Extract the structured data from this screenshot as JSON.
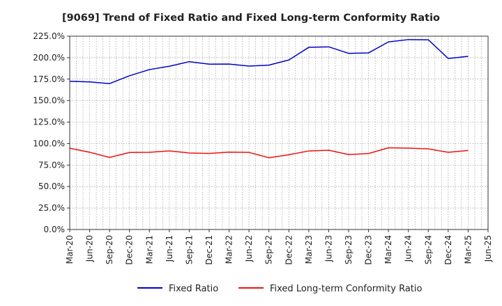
{
  "chart_data": {
    "type": "line",
    "title": "[9069]  Trend of Fixed Ratio and Fixed Long-term Conformity Ratio",
    "xlabel": "",
    "ylabel": "",
    "x": [
      "Mar-20",
      "Jun-20",
      "Sep-20",
      "Dec-20",
      "Mar-21",
      "Jun-21",
      "Sep-21",
      "Dec-21",
      "Mar-22",
      "Jun-22",
      "Sep-22",
      "Dec-22",
      "Mar-23",
      "Jun-23",
      "Sep-23",
      "Dec-23",
      "Mar-24",
      "Jun-24",
      "Sep-24",
      "Dec-24",
      "Mar-25",
      "Jun-25"
    ],
    "yticks": [
      "0.0%",
      "25.0%",
      "50.0%",
      "75.0%",
      "100.0%",
      "125.0%",
      "150.0%",
      "175.0%",
      "200.0%",
      "225.0%"
    ],
    "ylim": [
      0,
      225
    ],
    "grid": true,
    "legend_position": "bottom",
    "series": [
      {
        "name": "Fixed Ratio",
        "color": "#0000cc",
        "values": [
          172.5,
          171.8,
          169.8,
          178.9,
          186.1,
          190.0,
          195.3,
          192.4,
          192.5,
          190.2,
          191.3,
          197.3,
          212.0,
          212.6,
          205.0,
          205.5,
          218.3,
          221.0,
          220.8,
          199.0,
          201.5,
          null
        ]
      },
      {
        "name": "Fixed Long-term Conformity Ratio",
        "color": "#ee1111",
        "values": [
          94.6,
          89.9,
          83.9,
          89.6,
          89.8,
          91.5,
          89.0,
          88.5,
          90.0,
          89.7,
          83.5,
          87.0,
          91.4,
          92.3,
          87.2,
          88.4,
          95.1,
          94.7,
          93.9,
          89.8,
          92.0,
          null
        ]
      }
    ]
  }
}
